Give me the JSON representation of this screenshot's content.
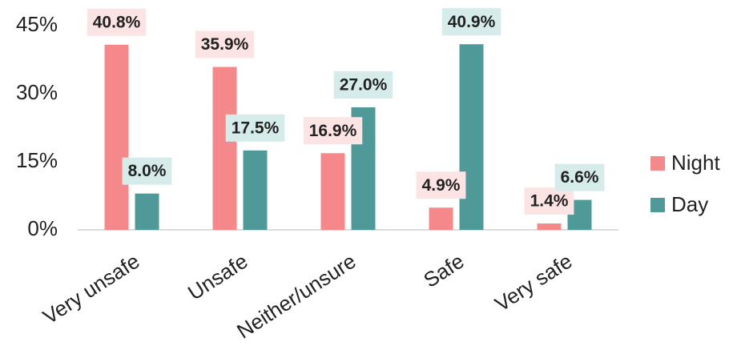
{
  "chart_data": {
    "type": "bar",
    "categories": [
      "Very unsafe",
      "Unsafe",
      "Neither/unsure",
      "Safe",
      "Very safe"
    ],
    "series": [
      {
        "name": "Night",
        "color": "#f4888a",
        "label_bg": "#fde4e4",
        "values": [
          40.8,
          35.9,
          16.9,
          4.9,
          1.4
        ],
        "value_labels": [
          "40.8%",
          "35.9%",
          "16.9%",
          "4.9%",
          "1.4%"
        ]
      },
      {
        "name": "Day",
        "color": "#4f9a98",
        "label_bg": "#d6ecea",
        "values": [
          8.0,
          17.5,
          27.0,
          40.9,
          6.6
        ],
        "value_labels": [
          "8.0%",
          "17.5%",
          "27.0%",
          "40.9%",
          "6.6%"
        ]
      }
    ],
    "ylim": [
      0,
      45
    ],
    "yticks": [
      {
        "value": 0,
        "label": "0%"
      },
      {
        "value": 15,
        "label": "15%"
      },
      {
        "value": 30,
        "label": "30%"
      },
      {
        "value": 45,
        "label": "45%"
      }
    ],
    "legend": "right"
  }
}
